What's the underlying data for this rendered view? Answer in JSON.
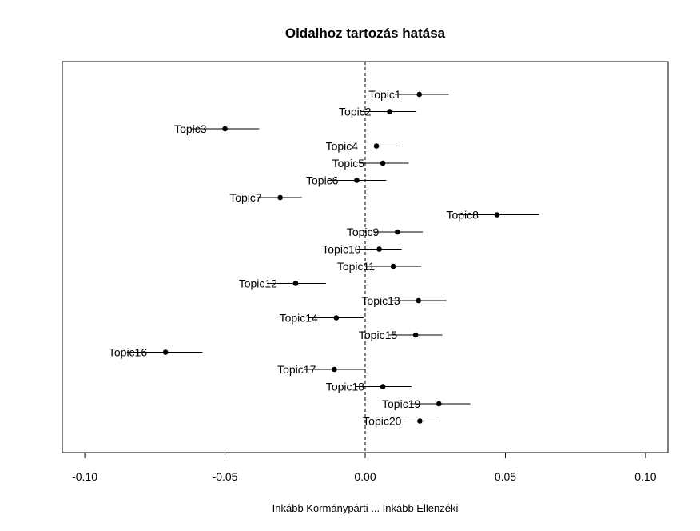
{
  "chart_data": {
    "type": "scatter",
    "title": "Oldalhoz tartozás hatása",
    "xlabel": "Inkább Kormánypárti ... Inkább Ellenzéki",
    "ylabel": "",
    "xlim": [
      -0.108,
      0.108
    ],
    "xticks": [
      -0.1,
      -0.05,
      0.0,
      0.05,
      0.1
    ],
    "xtick_labels": [
      "-0.10",
      "-0.05",
      "0.00",
      "0.05",
      "0.10"
    ],
    "reference_line": 0,
    "grid": false,
    "legend": "none",
    "series": [
      {
        "points": [
          {
            "label": "Topic1",
            "estimate": 0.0193,
            "lower": 0.0105,
            "upper": 0.0298
          },
          {
            "label": "Topic2",
            "estimate": 0.0087,
            "lower": -0.0015,
            "upper": 0.018
          },
          {
            "label": "Topic3",
            "estimate": -0.05,
            "lower": -0.0623,
            "upper": -0.0378
          },
          {
            "label": "Topic4",
            "estimate": 0.004,
            "lower": -0.005,
            "upper": 0.0115
          },
          {
            "label": "Topic5",
            "estimate": 0.0063,
            "lower": -0.002,
            "upper": 0.0155
          },
          {
            "label": "Topic6",
            "estimate": -0.003,
            "lower": -0.0135,
            "upper": 0.0075
          },
          {
            "label": "Topic7",
            "estimate": -0.0303,
            "lower": -0.0385,
            "upper": -0.0225
          },
          {
            "label": "Topic8",
            "estimate": 0.047,
            "lower": 0.033,
            "upper": 0.062
          },
          {
            "label": "Topic9",
            "estimate": 0.0115,
            "lower": 0.003,
            "upper": 0.0205
          },
          {
            "label": "Topic10",
            "estimate": 0.005,
            "lower": -0.003,
            "upper": 0.013
          },
          {
            "label": "Topic11",
            "estimate": 0.01,
            "lower": 0.0,
            "upper": 0.02
          },
          {
            "label": "Topic12",
            "estimate": -0.0248,
            "lower": -0.035,
            "upper": -0.014
          },
          {
            "label": "Topic13",
            "estimate": 0.019,
            "lower": 0.0095,
            "upper": 0.029
          },
          {
            "label": "Topic14",
            "estimate": -0.0103,
            "lower": -0.02,
            "upper": -0.0005
          },
          {
            "label": "Topic15",
            "estimate": 0.018,
            "lower": 0.0085,
            "upper": 0.0275
          },
          {
            "label": "Topic16",
            "estimate": -0.0712,
            "lower": -0.085,
            "upper": -0.058
          },
          {
            "label": "Topic17",
            "estimate": -0.011,
            "lower": -0.022,
            "upper": 0.0
          },
          {
            "label": "Topic18",
            "estimate": 0.0063,
            "lower": -0.0035,
            "upper": 0.0165
          },
          {
            "label": "Topic19",
            "estimate": 0.0263,
            "lower": 0.016,
            "upper": 0.0375
          },
          {
            "label": "Topic20",
            "estimate": 0.0195,
            "lower": 0.0135,
            "upper": 0.0255
          }
        ]
      }
    ]
  }
}
